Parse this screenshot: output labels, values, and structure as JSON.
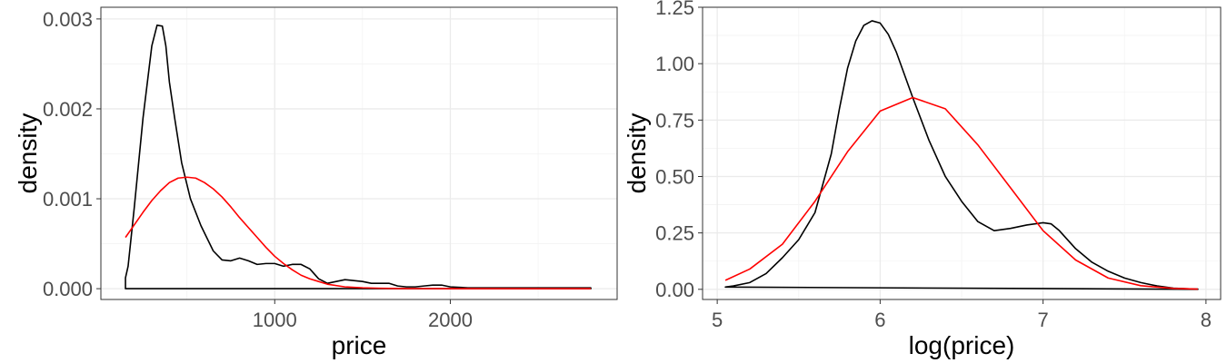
{
  "chart_data": [
    {
      "type": "line",
      "xlabel": "price",
      "ylabel": "density",
      "xlim": [
        10,
        2950
      ],
      "ylim": [
        -0.00012,
        0.00313
      ],
      "x_ticks": [
        1000,
        2000
      ],
      "x_tick_labels": [
        "1000",
        "2000"
      ],
      "y_ticks": [
        0,
        0.001,
        0.002,
        0.003
      ],
      "y_tick_labels": [
        "0.000",
        "0.001",
        "0.002",
        "0.003"
      ],
      "grid": true,
      "legend": "none",
      "series": [
        {
          "color": "#000000",
          "x": [
            150,
            150,
            165,
            200,
            250,
            300,
            330,
            360,
            380,
            400,
            430,
            470,
            520,
            580,
            650,
            700,
            750,
            800,
            850,
            900,
            950,
            1000,
            1050,
            1100,
            1150,
            1200,
            1250,
            1300,
            1350,
            1400,
            1450,
            1500,
            1550,
            1600,
            1650,
            1700,
            1750,
            1800,
            1850,
            1900,
            1950,
            2000,
            2100,
            2200,
            2400,
            2600,
            2800,
            2800
          ],
          "y": [
            0.0,
            0.00012,
            0.00025,
            0.0009,
            0.0019,
            0.0027,
            0.00293,
            0.00292,
            0.0027,
            0.0023,
            0.0019,
            0.0014,
            0.001,
            0.0007,
            0.00042,
            0.00032,
            0.00031,
            0.00034,
            0.00031,
            0.00027,
            0.00028,
            0.00028,
            0.00025,
            0.00027,
            0.00027,
            0.00022,
            0.00011,
            6e-05,
            8e-05,
            0.0001,
            9e-05,
            8e-05,
            6e-05,
            6e-05,
            6e-05,
            3e-05,
            2e-05,
            2e-05,
            3e-05,
            4e-05,
            4e-05,
            2e-05,
            1e-05,
            1e-05,
            1e-05,
            1e-05,
            1e-05,
            0.0
          ]
        },
        {
          "color": "#ff0000",
          "x": [
            150,
            200,
            250,
            300,
            350,
            400,
            450,
            500,
            550,
            600,
            650,
            700,
            750,
            800,
            850,
            900,
            950,
            1000,
            1050,
            1100,
            1150,
            1200,
            1250,
            1300,
            1400,
            1500,
            1600,
            1700,
            1800,
            2000,
            2200,
            2400,
            2600,
            2800
          ],
          "y": [
            0.00057,
            0.00071,
            0.00085,
            0.00098,
            0.00109,
            0.00118,
            0.00123,
            0.00124,
            0.00123,
            0.00118,
            0.00111,
            0.00102,
            0.00091,
            0.00079,
            0.00068,
            0.00057,
            0.00046,
            0.00036,
            0.00028,
            0.00021,
            0.00015,
            0.00011,
            8e-05,
            5e-05,
            2e-05,
            1e-05,
            5e-06,
            2e-06,
            1e-06,
            0.0,
            0.0,
            0.0,
            0.0,
            0.0
          ]
        }
      ]
    },
    {
      "type": "line",
      "xlabel": "log(price)",
      "ylabel": "density",
      "xlim": [
        4.91,
        8.09
      ],
      "ylim": [
        -0.045,
        1.25
      ],
      "x_ticks": [
        5,
        6,
        7,
        8
      ],
      "x_tick_labels": [
        "5",
        "6",
        "7",
        "8"
      ],
      "y_ticks": [
        0,
        0.25,
        0.5,
        0.75,
        1.0,
        1.25
      ],
      "y_tick_labels": [
        "0.00",
        "0.25",
        "0.50",
        "0.75",
        "1.00",
        "1.25"
      ],
      "grid": true,
      "legend": "none",
      "series": [
        {
          "color": "#000000",
          "x": [
            5.05,
            5.1,
            5.2,
            5.3,
            5.4,
            5.5,
            5.6,
            5.7,
            5.75,
            5.8,
            5.85,
            5.9,
            5.95,
            6.0,
            6.05,
            6.1,
            6.2,
            6.3,
            6.4,
            6.5,
            6.6,
            6.7,
            6.8,
            6.9,
            7.0,
            7.05,
            7.1,
            7.2,
            7.3,
            7.4,
            7.5,
            7.6,
            7.7,
            7.8,
            7.9,
            7.95,
            7.95
          ],
          "y": [
            0.01,
            0.015,
            0.03,
            0.07,
            0.14,
            0.22,
            0.34,
            0.6,
            0.8,
            0.98,
            1.1,
            1.17,
            1.19,
            1.18,
            1.13,
            1.05,
            0.85,
            0.66,
            0.5,
            0.39,
            0.3,
            0.26,
            0.27,
            0.285,
            0.295,
            0.29,
            0.26,
            0.18,
            0.12,
            0.08,
            0.05,
            0.03,
            0.015,
            0.005,
            0.002,
            0.001,
            0.0
          ]
        },
        {
          "color": "#ff0000",
          "x": [
            5.05,
            5.2,
            5.4,
            5.6,
            5.8,
            6.0,
            6.2,
            6.4,
            6.6,
            6.8,
            7.0,
            7.2,
            7.4,
            7.6,
            7.8,
            7.95
          ],
          "y": [
            0.04,
            0.09,
            0.2,
            0.39,
            0.61,
            0.79,
            0.85,
            0.8,
            0.64,
            0.45,
            0.26,
            0.13,
            0.05,
            0.016,
            0.004,
            0.001
          ]
        }
      ]
    }
  ]
}
